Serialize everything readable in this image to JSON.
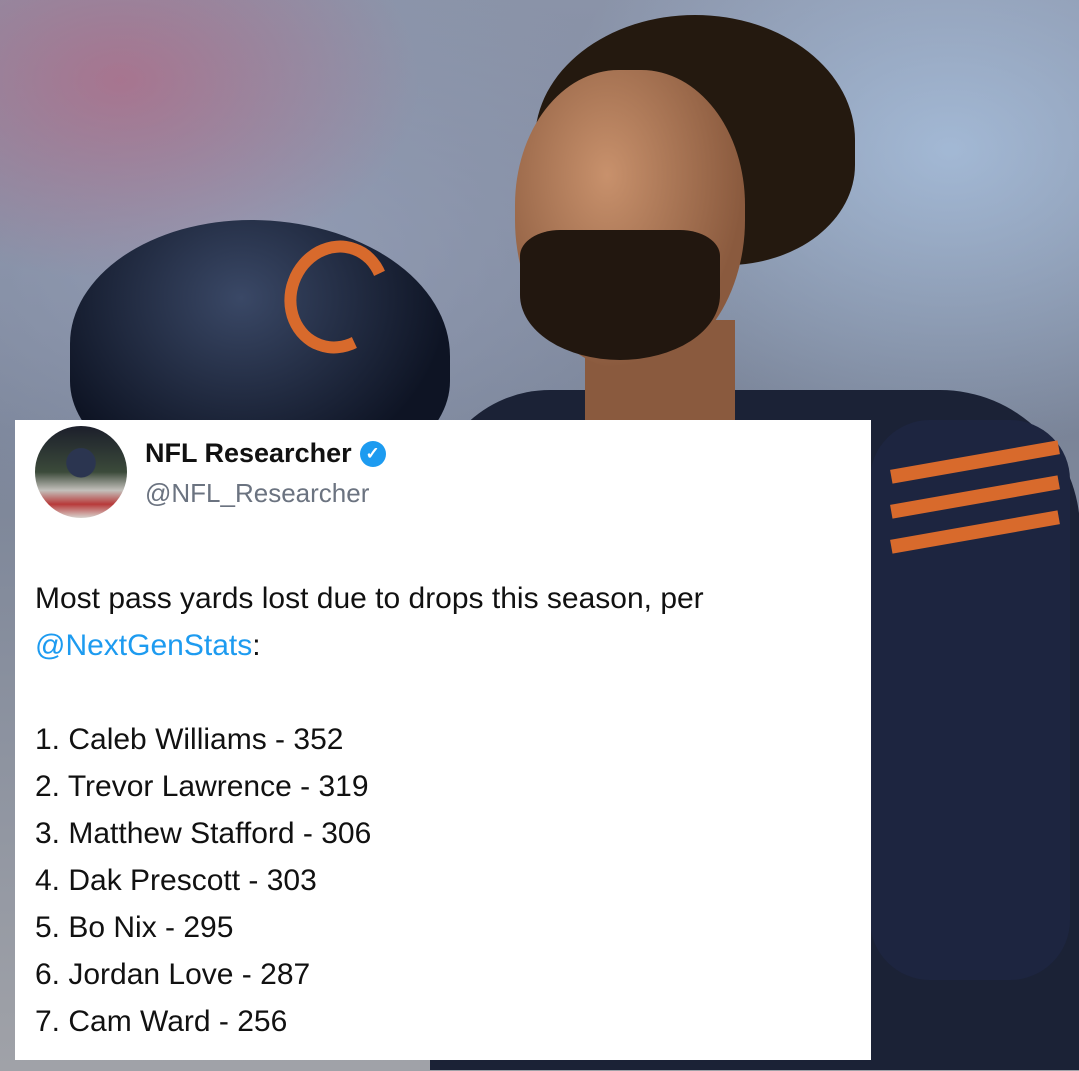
{
  "tweet": {
    "display_name": "NFL Researcher",
    "verified": true,
    "handle": "@NFL_Researcher",
    "text_intro": "Most pass yards lost due to drops this season, per",
    "mention": "@NextGenStats",
    "mention_suffix": ":",
    "list": [
      "1. Caleb Williams - 352",
      "2. Trevor Lawrence - 319",
      "3. Matthew Stafford - 306",
      "4. Dak Prescott - 303",
      "5. Bo Nix - 295",
      "6. Jordan Love - 287",
      "7. Cam Ward - 256"
    ]
  },
  "colors": {
    "accent": "#1d9bf0",
    "jersey": "#1b2236",
    "orange": "#d86a2c"
  }
}
